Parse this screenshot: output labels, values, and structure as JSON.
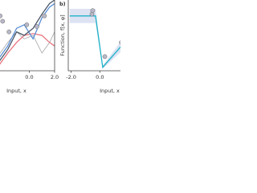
{
  "chart_data": [
    {
      "type": "line",
      "xlabel": "Input, x",
      "x": [
        -2.5,
        -1.7,
        -1.0,
        -0.4,
        0.3,
        1.0,
        1.6,
        2.0
      ],
      "series": [
        {
          "color": "#999999",
          "values": [
            -0.6,
            -0.2,
            0.1,
            -0.1,
            0.0,
            -0.5,
            -0.2,
            0.1
          ]
        },
        {
          "color": "#e8737e",
          "values": [
            -0.9,
            -0.5,
            -0.2,
            0.0,
            0.05,
            0.0,
            -0.2,
            -0.3
          ]
        },
        {
          "color": "#5a8fd6",
          "values": [
            -0.7,
            -0.3,
            0.2,
            0.3,
            -0.1,
            0.5,
            0.8,
            0.9
          ]
        },
        {
          "color": "#4b5768",
          "values": [
            -0.8,
            -0.4,
            0.1,
            0.0,
            0.2,
            0.6,
            0.9,
            1.0
          ]
        }
      ],
      "points": {
        "color": "#b8b8c8",
        "x": [
          -2.3,
          -2.1,
          -1.6,
          -0.2,
          0.6,
          1.2
        ],
        "y": [
          0.55,
          0.4,
          0.1,
          0.3,
          0.25,
          0.55
        ]
      },
      "xlim": [
        -2.5,
        2.0
      ],
      "ylim": [
        -1,
        1
      ],
      "xticks": [
        "0.0",
        "2.0"
      ]
    },
    {
      "type": "line",
      "panel": "b)",
      "ylabel": "Function, f[x, φ]",
      "xlabel": "Input, x",
      "x": [
        -2.1,
        -0.3,
        0.2,
        1.5
      ],
      "series": [
        {
          "color": "#1fb3c9",
          "values": [
            0.55,
            0.55,
            -0.9,
            -0.3
          ]
        }
      ],
      "band": {
        "color": "#dde3f3",
        "lower": [
          0.35,
          0.35,
          -0.95,
          -0.45
        ],
        "upper": [
          0.75,
          0.75,
          -0.85,
          -0.15
        ]
      },
      "points": {
        "color": "#b8b8c8",
        "x": [
          -0.55,
          -0.5,
          0.35,
          1.5
        ],
        "y": [
          0.6,
          0.7,
          -0.6,
          -0.2
        ]
      },
      "xlim": [
        -2.2,
        1.55
      ],
      "ylim": [
        -1,
        1
      ],
      "xticks": [
        "-2.0",
        "0.0"
      ]
    }
  ]
}
